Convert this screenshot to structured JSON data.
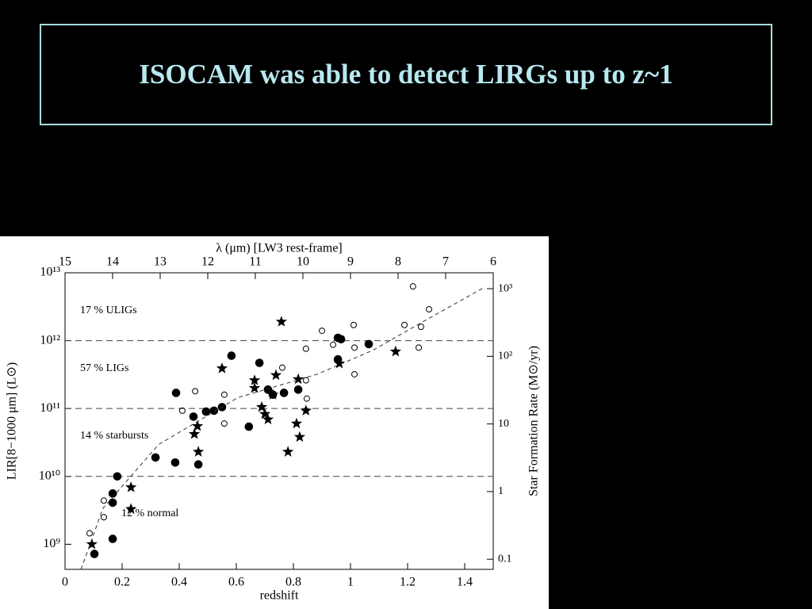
{
  "slide_title": "ISOCAM was able to detect LIRGs up to z~1",
  "chart_data": {
    "type": "scatter",
    "xlabel": "redshift",
    "ylabel": "LIR[8−1000 μm] (L⊙)",
    "y2label": "Star Formation Rate (M⊙/yr)",
    "x2label": "λ (μm) [LW3 rest-frame]",
    "xlim": [
      0,
      1.5
    ],
    "xticks": [
      0,
      0.2,
      0.4,
      0.6,
      0.8,
      1,
      1.2,
      1.4
    ],
    "x2lim": [
      15,
      6
    ],
    "x2ticks": [
      15,
      14,
      13,
      12,
      11,
      10,
      9,
      8,
      7,
      6
    ],
    "ylog": true,
    "ylim": [
      427000000.0,
      10000000000000.0
    ],
    "yticks": [
      {
        "value": 1000000000.0,
        "label": "10⁹"
      },
      {
        "value": 10000000000.0,
        "label": "10¹⁰"
      },
      {
        "value": 100000000000.0,
        "label": "10¹¹"
      },
      {
        "value": 1000000000000.0,
        "label": "10¹²"
      },
      {
        "value": 10000000000000.0,
        "label": "10¹³"
      }
    ],
    "y2log": true,
    "y2lim": [
      0.0708,
      1718
    ],
    "y2ticks": [
      0.1,
      1,
      10,
      {
        "value": 100,
        "label": "10²"
      },
      {
        "value": 1000,
        "label": "10³"
      }
    ],
    "reference_lines": [
      10000000000.0,
      100000000000.0,
      1000000000000.0
    ],
    "annotations": [
      "17 % ULIGs",
      "57 % LIGs",
      "14 % starbursts",
      "12 % normal"
    ],
    "grid": false,
    "series": [
      {
        "marker": "filled-circle",
        "color": "#000000",
        "x": [
          0.103,
          0.167,
          0.167,
          0.167,
          0.183,
          0.317,
          0.386,
          0.389,
          0.45,
          0.467,
          0.494,
          0.522,
          0.55,
          0.583,
          0.644,
          0.681,
          0.711,
          0.728,
          0.767,
          0.817,
          0.956,
          0.967,
          0.956,
          1.064
        ],
        "values": [
          720000000.0,
          1200000000.0,
          4100000000.0,
          5600000000.0,
          10000000000.0,
          19000000000.0,
          16000000000.0,
          170000000000.0,
          76000000000.0,
          15000000000.0,
          90000000000.0,
          93000000000.0,
          105000000000.0,
          600000000000.0,
          54000000000.0,
          470000000000.0,
          190000000000.0,
          160000000000.0,
          170000000000.0,
          190000000000.0,
          530000000000.0,
          1050000000000.0,
          1100000000000.0,
          890000000000.0
        ]
      },
      {
        "marker": "open-circle",
        "color": "#000000",
        "x": [
          0.086,
          0.136,
          0.136,
          0.411,
          0.456,
          0.558,
          0.558,
          0.761,
          0.844,
          0.844,
          0.847,
          0.9,
          0.939,
          1.011,
          1.014,
          1.014,
          1.189,
          1.219,
          1.239,
          1.247,
          1.275
        ],
        "values": [
          1450000000.0,
          2500000000.0,
          4400000000.0,
          93000000000.0,
          180000000000.0,
          160000000000.0,
          60000000000.0,
          400000000000.0,
          760000000000.0,
          260000000000.0,
          140000000000.0,
          1400000000000.0,
          870000000000.0,
          1700000000000.0,
          790000000000.0,
          320000000000.0,
          1700000000000.0,
          6300000000000.0,
          790000000000.0,
          1600000000000.0,
          2900000000000.0
        ]
      },
      {
        "marker": "star",
        "color": "#000000",
        "x": [
          0.094,
          0.231,
          0.231,
          0.453,
          0.464,
          0.467,
          0.55,
          0.664,
          0.664,
          0.689,
          0.7,
          0.711,
          0.728,
          0.739,
          0.758,
          0.781,
          0.811,
          0.817,
          0.822,
          0.844,
          0.961,
          1.158
        ],
        "values": [
          1000000000.0,
          6900000000.0,
          3300000000.0,
          42000000000.0,
          55000000000.0,
          23000000000.0,
          390000000000.0,
          260000000000.0,
          200000000000.0,
          105000000000.0,
          83000000000.0,
          69000000000.0,
          160000000000.0,
          310000000000.0,
          1900000000000.0,
          23000000000.0,
          60000000000.0,
          270000000000.0,
          38000000000.0,
          93000000000.0,
          460000000000.0,
          690000000000.0
        ]
      },
      {
        "marker": "dashed-line",
        "color": "#333333",
        "x": [
          0.056,
          0.133,
          0.328,
          0.606,
          0.883,
          1.078,
          1.272,
          1.472
        ],
        "values": [
          427000000.0,
          3400000000.0,
          29500000000.0,
          145000000000.0,
          320000000000.0,
          720000000000.0,
          2100000000000.0,
          6200000000000.0
        ]
      }
    ]
  }
}
